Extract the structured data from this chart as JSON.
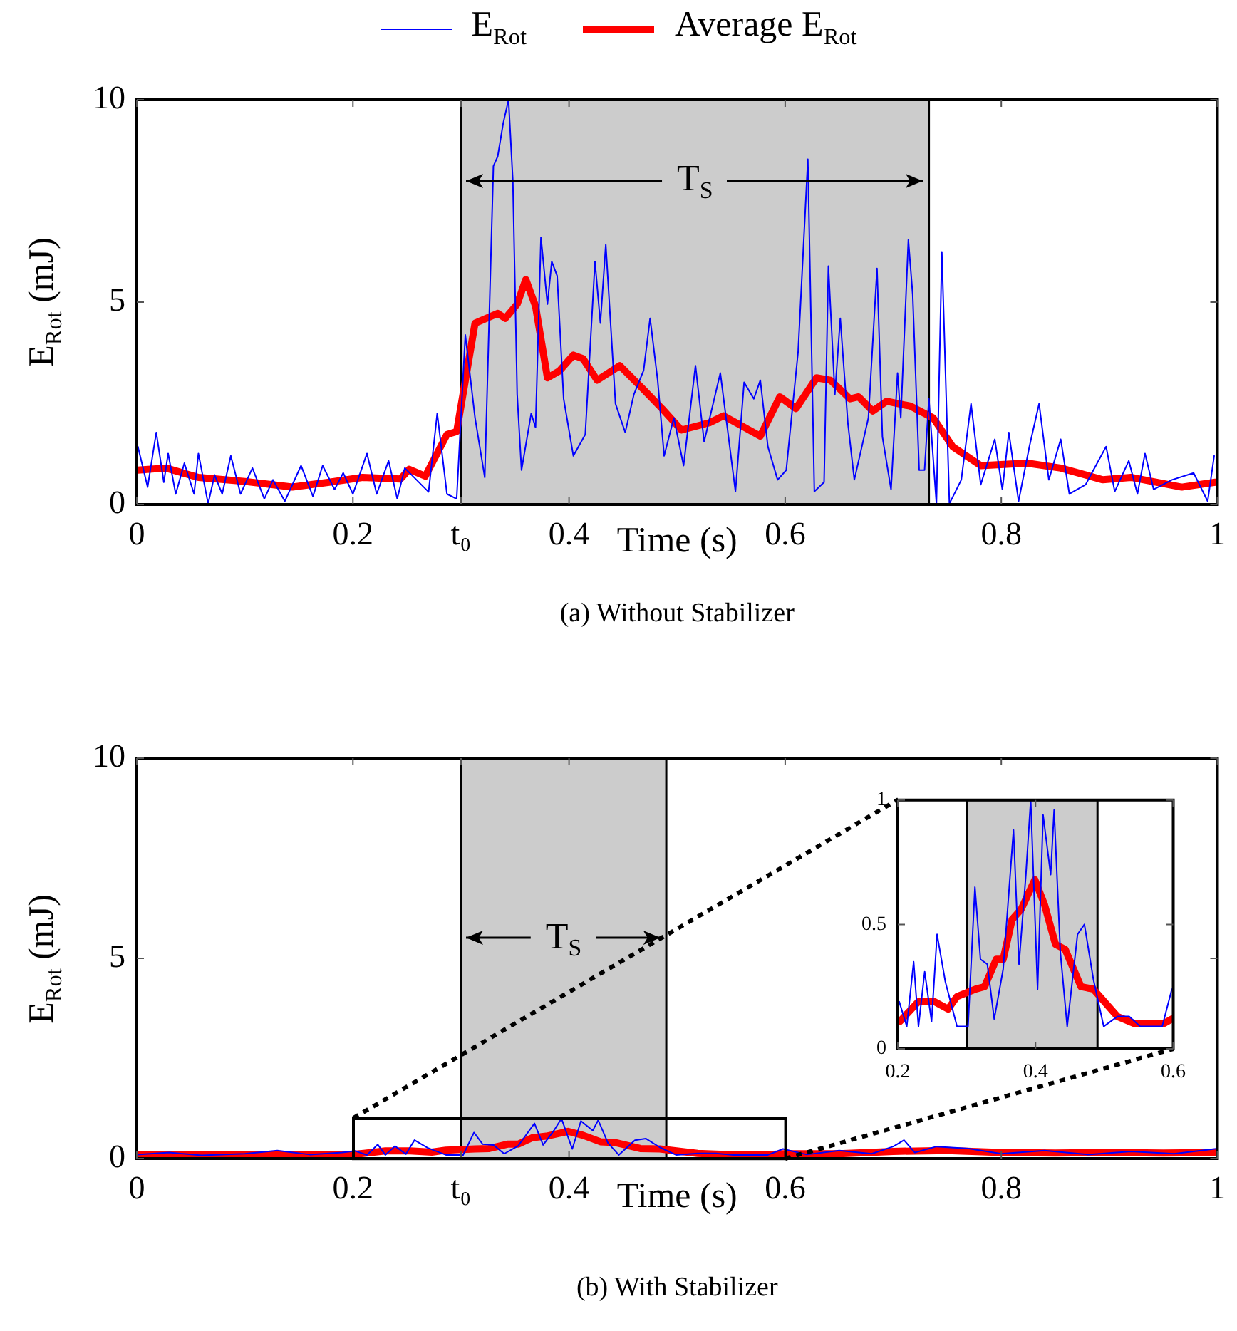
{
  "chart_data": [
    {
      "type": "line",
      "title": "(a) Without Stabilizer",
      "xlabel": "Time (s)",
      "ylabel": "E$_{Rot}$ (mJ)",
      "xlim": [
        0,
        1
      ],
      "ylim": [
        0,
        10
      ],
      "xticks": [
        0,
        0.2,
        {
          "value": 0.3,
          "label": "t₀"
        },
        0.4,
        0.6,
        0.8,
        1
      ],
      "yticks": [
        0,
        5,
        10
      ],
      "grid": false,
      "legend": "top",
      "bands": [
        {
          "axis": "x",
          "from": 0.3,
          "to": 0.733,
          "label": "T$_{S}$",
          "color": "#cccccc"
        }
      ],
      "series": [
        {
          "name": "E$_{Rot}$",
          "color": "#0000ff",
          "x": [
            0.001,
            0.01,
            0.018,
            0.025,
            0.029,
            0.036,
            0.044,
            0.053,
            0.057,
            0.066,
            0.072,
            0.079,
            0.087,
            0.096,
            0.107,
            0.118,
            0.126,
            0.137,
            0.152,
            0.163,
            0.172,
            0.183,
            0.191,
            0.2,
            0.213,
            0.222,
            0.233,
            0.241,
            0.248,
            0.27,
            0.278,
            0.287,
            0.296,
            0.304,
            0.313,
            0.322,
            0.33,
            0.334,
            0.339,
            0.344,
            0.348,
            0.352,
            0.356,
            0.365,
            0.369,
            0.374,
            0.38,
            0.384,
            0.389,
            0.395,
            0.404,
            0.415,
            0.424,
            0.429,
            0.434,
            0.443,
            0.452,
            0.46,
            0.469,
            0.475,
            0.482,
            0.488,
            0.497,
            0.506,
            0.517,
            0.525,
            0.54,
            0.554,
            0.562,
            0.571,
            0.577,
            0.584,
            0.593,
            0.601,
            0.612,
            0.621,
            0.627,
            0.636,
            0.64,
            0.646,
            0.651,
            0.658,
            0.664,
            0.677,
            0.685,
            0.69,
            0.698,
            0.704,
            0.707,
            0.714,
            0.718,
            0.724,
            0.729,
            0.733,
            0.74,
            0.745,
            0.752,
            0.763,
            0.772,
            0.781,
            0.794,
            0.801,
            0.807,
            0.816,
            0.826,
            0.835,
            0.844,
            0.855,
            0.863,
            0.878,
            0.897,
            0.905,
            0.918,
            0.926,
            0.933,
            0.941,
            0.958,
            0.978,
            0.991,
            0.997
          ],
          "values": [
            1.43,
            0.43,
            1.78,
            0.55,
            1.26,
            0.26,
            1.02,
            0.26,
            1.26,
            0.02,
            0.73,
            0.26,
            1.2,
            0.26,
            0.9,
            0.14,
            0.61,
            0.08,
            0.96,
            0.2,
            0.96,
            0.37,
            0.78,
            0.26,
            1.26,
            0.26,
            1.08,
            0.14,
            0.9,
            0.31,
            2.25,
            0.26,
            0.14,
            4.19,
            2.14,
            0.67,
            8.36,
            8.6,
            9.41,
            10,
            8.0,
            2.72,
            0.85,
            2.25,
            1.9,
            6.6,
            4.95,
            6.0,
            5.65,
            2.61,
            1.2,
            1.73,
            6.0,
            4.48,
            6.42,
            2.49,
            1.78,
            2.72,
            3.31,
            4.6,
            3.07,
            1.2,
            2.14,
            0.96,
            3.43,
            1.55,
            3.25,
            0.32,
            3.02,
            2.61,
            3.07,
            1.43,
            0.61,
            0.85,
            3.78,
            8.53,
            0.32,
            0.55,
            5.89,
            2.72,
            4.6,
            2.02,
            0.61,
            2.14,
            5.83,
            1.67,
            0.37,
            3.25,
            2.14,
            6.54,
            5.19,
            0.85,
            0.85,
            2.61,
            0.02,
            6.24,
            0.02,
            0.61,
            2.49,
            0.49,
            1.61,
            0.37,
            1.78,
            0.08,
            1.43,
            2.49,
            0.61,
            1.61,
            0.26,
            0.49,
            1.43,
            0.32,
            1.08,
            0.26,
            1.26,
            0.37,
            0.61,
            0.78,
            0.08,
            1.2
          ]
        },
        {
          "name": "Average E$_{Rot}$",
          "color": "#ff0000",
          "x": [
            0.001,
            0.027,
            0.057,
            0.1,
            0.144,
            0.178,
            0.209,
            0.244,
            0.252,
            0.267,
            0.287,
            0.296,
            0.313,
            0.334,
            0.341,
            0.352,
            0.36,
            0.369,
            0.38,
            0.391,
            0.404,
            0.413,
            0.426,
            0.447,
            0.469,
            0.486,
            0.504,
            0.53,
            0.543,
            0.577,
            0.595,
            0.61,
            0.629,
            0.642,
            0.66,
            0.668,
            0.681,
            0.694,
            0.716,
            0.737,
            0.755,
            0.781,
            0.824,
            0.855,
            0.894,
            0.92,
            0.967,
            0.998
          ],
          "values": [
            0.85,
            0.9,
            0.67,
            0.57,
            0.43,
            0.55,
            0.67,
            0.63,
            0.87,
            0.7,
            1.73,
            1.8,
            4.48,
            4.72,
            4.6,
            4.95,
            5.56,
            4.9,
            3.13,
            3.3,
            3.69,
            3.6,
            3.07,
            3.43,
            2.84,
            2.37,
            1.84,
            2.02,
            2.19,
            1.69,
            2.66,
            2.37,
            3.13,
            3.07,
            2.61,
            2.66,
            2.31,
            2.55,
            2.43,
            2.14,
            1.43,
            0.96,
            1.02,
            0.9,
            0.61,
            0.67,
            0.43,
            0.55
          ]
        }
      ]
    },
    {
      "type": "line",
      "title": "(b) With Stabilizer",
      "xlabel": "Time (s)",
      "ylabel": "E$_{Rot}$ (mJ)",
      "xlim": [
        0,
        1
      ],
      "ylim": [
        0,
        10
      ],
      "xticks": [
        0,
        0.2,
        {
          "value": 0.3,
          "label": "t₀"
        },
        0.4,
        0.6,
        0.8,
        1
      ],
      "yticks": [
        0,
        5,
        10
      ],
      "grid": false,
      "bands": [
        {
          "axis": "x",
          "from": 0.3,
          "to": 0.49,
          "label": "T$_{S}$",
          "color": "#cccccc"
        }
      ],
      "series": [
        {
          "color": "#0000ff",
          "x": [
            0,
            0.03,
            0.06,
            0.1,
            0.13,
            0.16,
            0.19,
            0.202,
            0.213,
            0.223,
            0.23,
            0.239,
            0.249,
            0.257,
            0.269,
            0.286,
            0.302,
            0.312,
            0.32,
            0.33,
            0.34,
            0.353,
            0.368,
            0.376,
            0.386,
            0.393,
            0.403,
            0.411,
            0.422,
            0.427,
            0.436,
            0.446,
            0.461,
            0.471,
            0.484,
            0.499,
            0.519,
            0.536,
            0.552,
            0.584,
            0.598,
            0.62,
            0.65,
            0.68,
            0.7,
            0.71,
            0.72,
            0.74,
            0.77,
            0.8,
            0.84,
            0.88,
            0.92,
            0.96,
            1.0
          ],
          "values": [
            0.1,
            0.15,
            0.08,
            0.12,
            0.2,
            0.1,
            0.15,
            0.19,
            0.09,
            0.35,
            0.09,
            0.31,
            0.11,
            0.46,
            0.27,
            0.09,
            0.09,
            0.65,
            0.36,
            0.34,
            0.12,
            0.32,
            0.88,
            0.34,
            0.7,
            1.0,
            0.24,
            0.94,
            0.7,
            0.96,
            0.39,
            0.09,
            0.46,
            0.5,
            0.28,
            0.09,
            0.13,
            0.13,
            0.09,
            0.09,
            0.24,
            0.1,
            0.2,
            0.12,
            0.3,
            0.46,
            0.15,
            0.3,
            0.25,
            0.12,
            0.2,
            0.1,
            0.18,
            0.12,
            0.25
          ]
        },
        {
          "color": "#ff0000",
          "x": [
            0,
            0.05,
            0.1,
            0.15,
            0.203,
            0.23,
            0.253,
            0.273,
            0.286,
            0.313,
            0.326,
            0.343,
            0.353,
            0.366,
            0.379,
            0.399,
            0.413,
            0.429,
            0.443,
            0.466,
            0.484,
            0.519,
            0.545,
            0.585,
            0.598,
            0.65,
            0.7,
            0.75,
            0.8,
            0.85,
            0.9,
            0.95,
            1.0
          ],
          "values": [
            0.1,
            0.1,
            0.1,
            0.1,
            0.11,
            0.19,
            0.19,
            0.16,
            0.21,
            0.24,
            0.25,
            0.36,
            0.36,
            0.52,
            0.56,
            0.68,
            0.58,
            0.42,
            0.4,
            0.25,
            0.24,
            0.13,
            0.1,
            0.1,
            0.12,
            0.12,
            0.18,
            0.2,
            0.15,
            0.14,
            0.15,
            0.14,
            0.15
          ]
        }
      ]
    },
    {
      "type": "line",
      "xlim": [
        0.2,
        0.6
      ],
      "ylim": [
        0,
        1
      ],
      "xticks": [
        0.2,
        0.4,
        0.6
      ],
      "yticks": [
        0,
        0.5,
        1
      ],
      "grid": false,
      "bands": [
        {
          "axis": "x",
          "from": 0.3,
          "to": 0.49,
          "color": "#cccccc"
        }
      ],
      "series": [
        {
          "color": "#0000ff",
          "x": [
            0.202,
            0.213,
            0.223,
            0.23,
            0.239,
            0.249,
            0.257,
            0.269,
            0.286,
            0.302,
            0.312,
            0.32,
            0.33,
            0.34,
            0.353,
            0.368,
            0.376,
            0.386,
            0.393,
            0.403,
            0.411,
            0.422,
            0.427,
            0.436,
            0.446,
            0.461,
            0.471,
            0.484,
            0.499,
            0.519,
            0.536,
            0.552,
            0.584,
            0.598
          ],
          "values": [
            0.19,
            0.09,
            0.35,
            0.09,
            0.31,
            0.11,
            0.46,
            0.27,
            0.09,
            0.09,
            0.65,
            0.36,
            0.34,
            0.12,
            0.32,
            0.88,
            0.34,
            0.7,
            1.0,
            0.24,
            0.94,
            0.7,
            0.96,
            0.39,
            0.09,
            0.46,
            0.5,
            0.28,
            0.09,
            0.13,
            0.13,
            0.09,
            0.09,
            0.24
          ]
        },
        {
          "color": "#ff0000",
          "x": [
            0.203,
            0.23,
            0.253,
            0.273,
            0.286,
            0.313,
            0.326,
            0.343,
            0.353,
            0.366,
            0.379,
            0.399,
            0.413,
            0.429,
            0.443,
            0.466,
            0.484,
            0.519,
            0.545,
            0.585,
            0.598
          ],
          "values": [
            0.11,
            0.19,
            0.19,
            0.16,
            0.21,
            0.24,
            0.25,
            0.36,
            0.36,
            0.52,
            0.56,
            0.68,
            0.58,
            0.42,
            0.4,
            0.25,
            0.24,
            0.13,
            0.1,
            0.1,
            0.12
          ]
        }
      ]
    }
  ]
}
